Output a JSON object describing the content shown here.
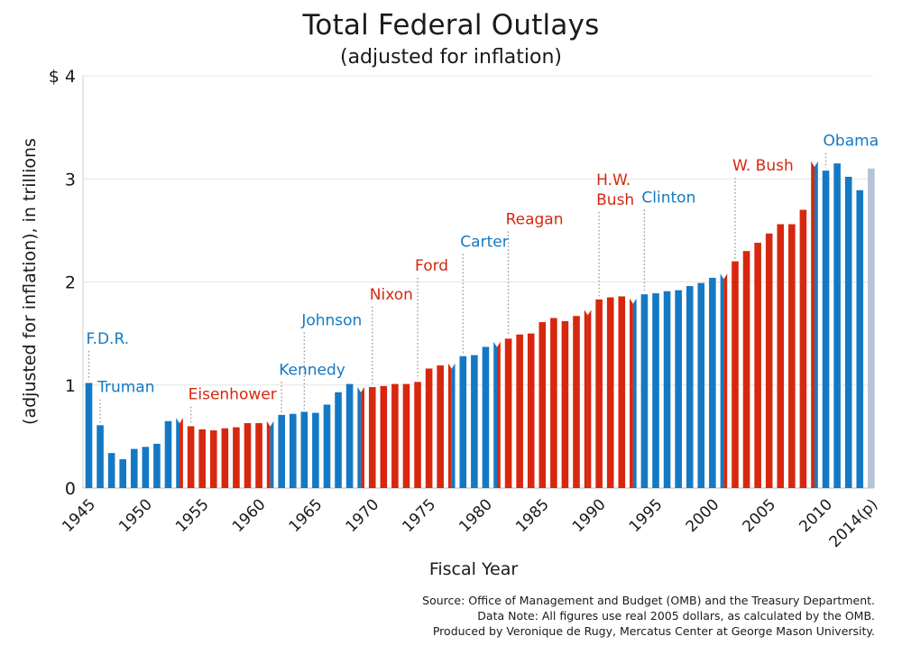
{
  "chart_data": {
    "type": "bar",
    "title": "Total Federal Outlays",
    "subtitle": "(adjusted for inflation)",
    "xlabel": "Fiscal Year",
    "ylabel": "(adjusted for inflation), in trillions",
    "ylim": [
      0,
      4
    ],
    "y_ticks": [
      {
        "value": 0,
        "label": "0"
      },
      {
        "value": 1,
        "label": "1"
      },
      {
        "value": 2,
        "label": "2"
      },
      {
        "value": 3,
        "label": "3"
      },
      {
        "value": 4,
        "label": "$ 4"
      }
    ],
    "x_ticks": [
      {
        "year": 1945,
        "label": "1945"
      },
      {
        "year": 1950,
        "label": "1950"
      },
      {
        "year": 1955,
        "label": "1955"
      },
      {
        "year": 1960,
        "label": "1960"
      },
      {
        "year": 1965,
        "label": "1965"
      },
      {
        "year": 1970,
        "label": "1970"
      },
      {
        "year": 1975,
        "label": "1975"
      },
      {
        "year": 1980,
        "label": "1980"
      },
      {
        "year": 1985,
        "label": "1985"
      },
      {
        "year": 1990,
        "label": "1990"
      },
      {
        "year": 1995,
        "label": "1995"
      },
      {
        "year": 2000,
        "label": "2000"
      },
      {
        "year": 2005,
        "label": "2005"
      },
      {
        "year": 2010,
        "label": "2010"
      },
      {
        "year": 2014,
        "label": "2014(p)"
      }
    ],
    "grid": true,
    "legend": "none",
    "colors": {
      "democrat": "#1479c4",
      "republican": "#d7280f",
      "projected": "#b5c4d4"
    },
    "x": [
      1945,
      1946,
      1947,
      1948,
      1949,
      1950,
      1951,
      1952,
      1953,
      1954,
      1955,
      1956,
      1957,
      1958,
      1959,
      1960,
      1961,
      1962,
      1963,
      1964,
      1965,
      1966,
      1967,
      1968,
      1969,
      1970,
      1971,
      1972,
      1973,
      1974,
      1975,
      1976,
      1977,
      1978,
      1979,
      1980,
      1981,
      1982,
      1983,
      1984,
      1985,
      1986,
      1987,
      1988,
      1989,
      1990,
      1991,
      1992,
      1993,
      1994,
      1995,
      1996,
      1997,
      1998,
      1999,
      2000,
      2001,
      2002,
      2003,
      2004,
      2005,
      2006,
      2007,
      2008,
      2009,
      2010,
      2011,
      2012,
      2013,
      2014
    ],
    "values": [
      1.02,
      0.61,
      0.34,
      0.28,
      0.38,
      0.4,
      0.43,
      0.65,
      0.68,
      0.6,
      0.57,
      0.56,
      0.58,
      0.59,
      0.63,
      0.63,
      0.65,
      0.71,
      0.72,
      0.74,
      0.73,
      0.81,
      0.93,
      1.01,
      0.98,
      0.98,
      0.99,
      1.01,
      1.01,
      1.03,
      1.16,
      1.19,
      1.21,
      1.28,
      1.29,
      1.37,
      1.42,
      1.45,
      1.49,
      1.5,
      1.61,
      1.65,
      1.62,
      1.67,
      1.73,
      1.83,
      1.85,
      1.86,
      1.84,
      1.88,
      1.89,
      1.91,
      1.92,
      1.96,
      1.99,
      2.04,
      2.08,
      2.2,
      2.3,
      2.38,
      2.47,
      2.56,
      2.56,
      2.7,
      3.17,
      3.08,
      3.15,
      3.02,
      2.89,
      3.1
    ],
    "party": [
      "D",
      "D",
      "D",
      "D",
      "D",
      "D",
      "D",
      "D",
      "D",
      "R",
      "R",
      "R",
      "R",
      "R",
      "R",
      "R",
      "R",
      "D",
      "D",
      "D",
      "D",
      "D",
      "D",
      "D",
      "D",
      "R",
      "R",
      "R",
      "R",
      "R",
      "R",
      "R",
      "R",
      "D",
      "D",
      "D",
      "D",
      "R",
      "R",
      "R",
      "R",
      "R",
      "R",
      "R",
      "R",
      "R",
      "R",
      "R",
      "R",
      "D",
      "D",
      "D",
      "D",
      "D",
      "D",
      "D",
      "D",
      "R",
      "R",
      "R",
      "R",
      "R",
      "R",
      "R",
      "R",
      "D",
      "D",
      "D",
      "D",
      "P"
    ],
    "split_years": [
      1953,
      1961,
      1969,
      1977,
      1981,
      1989,
      1993,
      2001,
      2009
    ],
    "presidents": [
      {
        "name": "F.D.R.",
        "lines": [
          "F.D.R."
        ],
        "party": "D",
        "year": 1945,
        "label_y": 1.4
      },
      {
        "name": "Truman",
        "lines": [
          "Truman"
        ],
        "party": "D",
        "year": 1946,
        "label_y": 0.93
      },
      {
        "name": "Eisenhower",
        "lines": [
          "Eisenhower"
        ],
        "party": "R",
        "year": 1954,
        "label_y": 0.86
      },
      {
        "name": "Kennedy",
        "lines": [
          "Kennedy"
        ],
        "party": "D",
        "year": 1962,
        "label_y": 1.1
      },
      {
        "name": "Johnson",
        "lines": [
          "Johnson"
        ],
        "party": "D",
        "year": 1964,
        "label_y": 1.58
      },
      {
        "name": "Nixon",
        "lines": [
          "Nixon"
        ],
        "party": "R",
        "year": 1970,
        "label_y": 1.83
      },
      {
        "name": "Ford",
        "lines": [
          "Ford"
        ],
        "party": "R",
        "year": 1974,
        "label_y": 2.11
      },
      {
        "name": "Carter",
        "lines": [
          "Carter"
        ],
        "party": "D",
        "year": 1978,
        "label_y": 2.34
      },
      {
        "name": "Reagan",
        "lines": [
          "Reagan"
        ],
        "party": "R",
        "year": 1982,
        "label_y": 2.56
      },
      {
        "name": "H.W. Bush",
        "lines": [
          "H.W.",
          "Bush"
        ],
        "party": "R",
        "year": 1990,
        "label_y": 2.75
      },
      {
        "name": "Clinton",
        "lines": [
          "Clinton"
        ],
        "party": "D",
        "year": 1994,
        "label_y": 2.77
      },
      {
        "name": "W. Bush",
        "lines": [
          "W. Bush"
        ],
        "party": "R",
        "year": 2002,
        "label_y": 3.08
      },
      {
        "name": "Obama",
        "lines": [
          "Obama"
        ],
        "party": "D",
        "year": 2010,
        "label_y": 3.32
      }
    ]
  },
  "notes": {
    "source": "Source: Office of Management and Budget (OMB) and the Treasury Department.",
    "data_note": "Data Note: All figures use real 2005 dollars, as calculated by the OMB.",
    "produced_by": "Produced by Veronique de Rugy, Mercatus Center at George Mason University."
  }
}
